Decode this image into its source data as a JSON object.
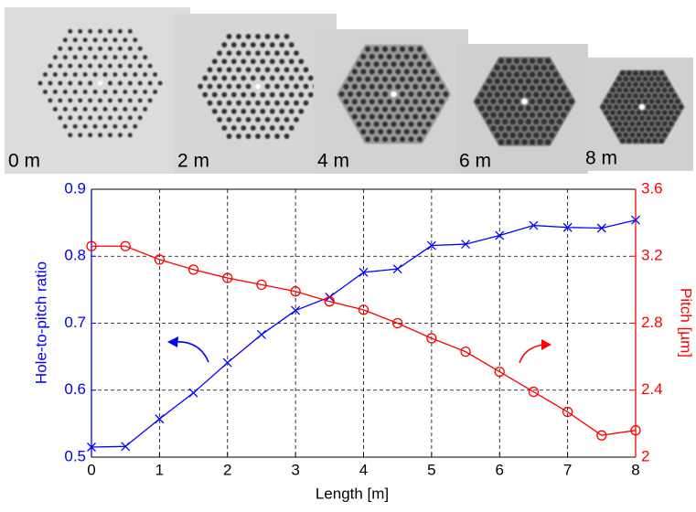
{
  "panels": [
    {
      "label": "0 m"
    },
    {
      "label": "2 m"
    },
    {
      "label": "4 m"
    },
    {
      "label": "6 m"
    },
    {
      "label": "8 m"
    }
  ],
  "chart_data": {
    "type": "line",
    "xlabel": "Length [m]",
    "ylabel": "Hole-to-pitch ratio",
    "y2label": "Pitch [µm]",
    "x": [
      0,
      0.5,
      1,
      1.5,
      2,
      2.5,
      3,
      3.5,
      4,
      4.5,
      5,
      5.5,
      6,
      6.5,
      7,
      7.5,
      8
    ],
    "xlim": [
      0,
      8
    ],
    "xticks": [
      0,
      1,
      2,
      3,
      4,
      5,
      6,
      7,
      8
    ],
    "ylim": [
      0.5,
      0.9
    ],
    "yticks": [
      0.5,
      0.6,
      0.7,
      0.8,
      0.9
    ],
    "y2lim": [
      2,
      3.6
    ],
    "y2ticks": [
      2,
      2.4,
      2.8,
      3.2,
      3.6
    ],
    "grid": true,
    "series": [
      {
        "color": "#0000ff",
        "marker": "x",
        "values": [
          0.515,
          0.516,
          0.557,
          0.596,
          0.641,
          0.683,
          0.719,
          0.739,
          0.776,
          0.781,
          0.816,
          0.818,
          0.831,
          0.846,
          0.843,
          0.842,
          0.854
        ]
      },
      {
        "color": "#ff0000",
        "marker": "o",
        "axis": "y2",
        "values": [
          3.26,
          3.26,
          3.18,
          3.12,
          3.07,
          3.03,
          2.99,
          2.93,
          2.88,
          2.8,
          2.71,
          2.63,
          2.51,
          2.39,
          2.27,
          2.13,
          2.16
        ]
      }
    ]
  }
}
